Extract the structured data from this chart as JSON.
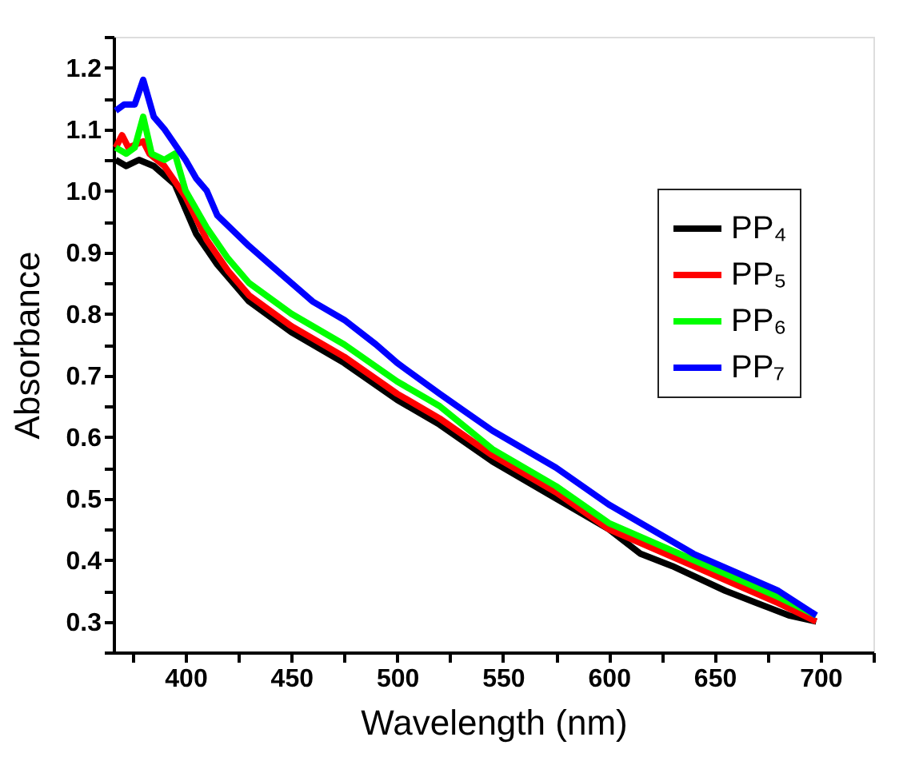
{
  "chart_data": {
    "type": "line",
    "xlabel": "Wavelength (nm)",
    "ylabel": "Absorbance",
    "xlim": [
      366,
      725
    ],
    "ylim": [
      0.25,
      1.25
    ],
    "xticks": [
      {
        "value": 375,
        "label": null
      },
      400,
      {
        "value": 425,
        "label": null
      },
      450,
      {
        "value": 475,
        "label": null
      },
      500,
      {
        "value": 525,
        "label": null
      },
      550,
      {
        "value": 575,
        "label": null
      },
      600,
      {
        "value": 625,
        "label": null
      },
      650,
      {
        "value": 675,
        "label": null
      },
      700,
      {
        "value": 725,
        "label": null
      }
    ],
    "yticks": [
      {
        "value": 0.25,
        "label": null
      },
      0.3,
      {
        "value": 0.35,
        "label": null
      },
      0.4,
      {
        "value": 0.45,
        "label": null
      },
      0.5,
      {
        "value": 0.55,
        "label": null
      },
      0.6,
      {
        "value": 0.65,
        "label": null
      },
      0.7,
      {
        "value": 0.75,
        "label": null
      },
      0.8,
      {
        "value": 0.85,
        "label": null
      },
      0.9,
      {
        "value": 0.95,
        "label": null
      },
      {
        "value": 1.0,
        "label": "1.0"
      },
      {
        "value": 1.05,
        "label": null
      },
      1.1,
      {
        "value": 1.15,
        "label": null
      },
      1.2,
      {
        "value": 1.25,
        "label": null
      }
    ],
    "grid": false,
    "legend": "top right",
    "marker": "none",
    "line_style": "solid",
    "series": [
      {
        "name": "PP₄",
        "color": "#000000",
        "x": [
          367,
          372,
          378,
          385,
          395,
          400,
          405,
          415,
          430,
          450,
          475,
          500,
          520,
          545,
          575,
          600,
          615,
          630,
          655,
          670,
          685,
          698
        ],
        "values": [
          1.05,
          1.04,
          1.05,
          1.04,
          1.01,
          0.97,
          0.93,
          0.88,
          0.82,
          0.77,
          0.72,
          0.66,
          0.62,
          0.56,
          0.5,
          0.45,
          0.41,
          0.39,
          0.35,
          0.33,
          0.31,
          0.3
        ]
      },
      {
        "name": "PP₅",
        "color": "#ff0000",
        "x": [
          367,
          370,
          373,
          380,
          383,
          390,
          400,
          410,
          420,
          430,
          450,
          475,
          500,
          520,
          545,
          575,
          600,
          620,
          640,
          660,
          680,
          698
        ],
        "values": [
          1.07,
          1.09,
          1.07,
          1.08,
          1.06,
          1.04,
          0.99,
          0.92,
          0.87,
          0.83,
          0.78,
          0.73,
          0.67,
          0.63,
          0.57,
          0.51,
          0.45,
          0.42,
          0.39,
          0.36,
          0.33,
          0.3
        ]
      },
      {
        "name": "PP₆",
        "color": "#00ff00",
        "x": [
          367,
          372,
          376,
          380,
          384,
          390,
          395,
          400,
          410,
          420,
          430,
          450,
          475,
          500,
          520,
          545,
          575,
          600,
          620,
          640,
          660,
          680,
          698
        ],
        "values": [
          1.07,
          1.06,
          1.07,
          1.12,
          1.06,
          1.05,
          1.06,
          1.0,
          0.94,
          0.89,
          0.85,
          0.8,
          0.75,
          0.69,
          0.65,
          0.58,
          0.52,
          0.46,
          0.43,
          0.4,
          0.37,
          0.34,
          0.31
        ]
      },
      {
        "name": "PP₇",
        "color": "#0000ff",
        "x": [
          367,
          371,
          376,
          380,
          385,
          390,
          400,
          405,
          410,
          415,
          430,
          440,
          450,
          460,
          475,
          490,
          500,
          520,
          545,
          575,
          600,
          620,
          640,
          660,
          680,
          698
        ],
        "values": [
          1.13,
          1.14,
          1.14,
          1.18,
          1.12,
          1.1,
          1.05,
          1.02,
          1.0,
          0.96,
          0.91,
          0.88,
          0.85,
          0.82,
          0.79,
          0.75,
          0.72,
          0.67,
          0.61,
          0.55,
          0.49,
          0.45,
          0.41,
          0.38,
          0.35,
          0.31
        ]
      }
    ]
  }
}
